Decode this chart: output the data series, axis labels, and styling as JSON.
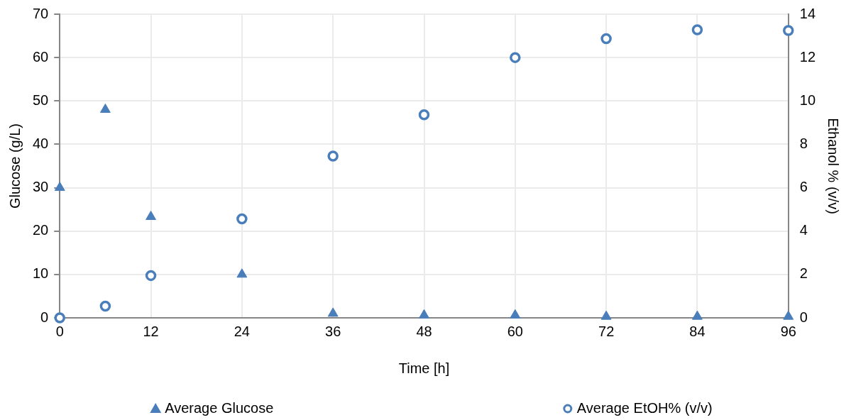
{
  "chart_data": {
    "type": "scatter",
    "xlabel": "Time [h]",
    "ylabel": "Glucose (g/L)",
    "y2label": "Ethanol % (v/v)",
    "x": [
      0,
      6,
      12,
      24,
      36,
      48,
      60,
      72,
      84,
      96
    ],
    "series": [
      {
        "name": "Average Glucose",
        "color": "#4a7ebb",
        "marker": "triangle",
        "values": [
          30,
          48,
          23.3,
          10,
          1.0,
          0.6,
          0.6,
          0.3,
          0.3,
          0.3
        ]
      },
      {
        "name": "Average EtOH% (v/v)",
        "color": "#4a7ebb",
        "marker": "circle",
        "axis": "y2",
        "values": [
          0,
          0.54,
          1.95,
          4.56,
          7.46,
          9.36,
          12.0,
          12.87,
          13.28,
          13.25
        ]
      }
    ],
    "xlim": [
      0,
      96
    ],
    "xticks": [
      0,
      12,
      24,
      36,
      48,
      60,
      72,
      84,
      96
    ],
    "ylim": [
      0,
      70
    ],
    "yticks": [
      0,
      10,
      20,
      30,
      40,
      50,
      60,
      70
    ],
    "y2lim": [
      0,
      14
    ],
    "y2ticks": [
      0,
      2,
      4,
      6,
      8,
      10,
      12,
      14
    ],
    "grid": true,
    "legend": "bottom"
  }
}
